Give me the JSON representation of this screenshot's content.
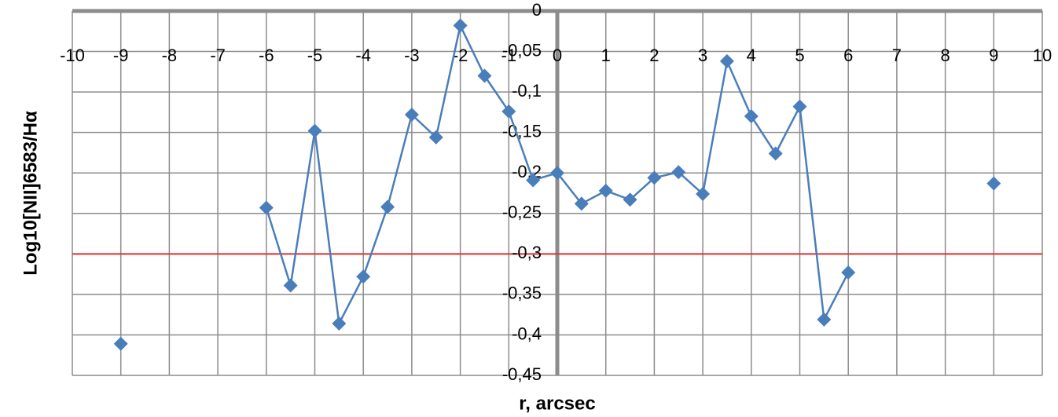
{
  "chart_data": {
    "type": "line",
    "x_label": "r, arcsec",
    "y_label": "Log10[NII]6583/Hα",
    "xlim": [
      -10,
      10
    ],
    "xticks": [
      -10,
      -9,
      -8,
      -7,
      -6,
      -5,
      -4,
      -3,
      -2,
      -1,
      0,
      1,
      2,
      3,
      4,
      5,
      6,
      7,
      8,
      9,
      10
    ],
    "ylim": [
      -0.45,
      0
    ],
    "yticks": [
      0,
      {
        "value": -0.05,
        "label": "-0,05"
      },
      {
        "value": -0.1,
        "label": "-0,1"
      },
      {
        "value": -0.15,
        "label": "-0,15"
      },
      {
        "value": -0.2,
        "label": "-0,2"
      },
      {
        "value": -0.25,
        "label": "-0,25"
      },
      {
        "value": -0.3,
        "label": "-0,3"
      },
      {
        "value": -0.35,
        "label": "-0,35"
      },
      {
        "value": -0.4,
        "label": "-0,4"
      },
      {
        "value": -0.45,
        "label": "-0,45"
      }
    ],
    "grid": true,
    "reference_line": {
      "value": -0.3,
      "color": "#e03030"
    },
    "series": [
      {
        "color": "#4a7ebb",
        "connected": true,
        "x": [
          -6,
          -5.5,
          -5,
          -4.5,
          -4,
          -3.5,
          -3,
          -2.5,
          -2,
          -1.5,
          -1,
          -0.5,
          0,
          0.5,
          1,
          1.5,
          2,
          2.5,
          3,
          3.5,
          4,
          4.5,
          5,
          5.5,
          6
        ],
        "values": [
          -0.243,
          -0.339,
          -0.148,
          -0.386,
          -0.328,
          -0.242,
          -0.128,
          -0.156,
          -0.018,
          -0.08,
          -0.124,
          -0.209,
          -0.2,
          -0.238,
          -0.222,
          -0.233,
          -0.206,
          -0.199,
          -0.226,
          -0.062,
          -0.13,
          -0.176,
          -0.118,
          -0.381,
          -0.323
        ]
      },
      {
        "color": "#4a7ebb",
        "connected": false,
        "x": [
          -9,
          9
        ],
        "values": [
          -0.411,
          -0.213
        ]
      }
    ]
  }
}
